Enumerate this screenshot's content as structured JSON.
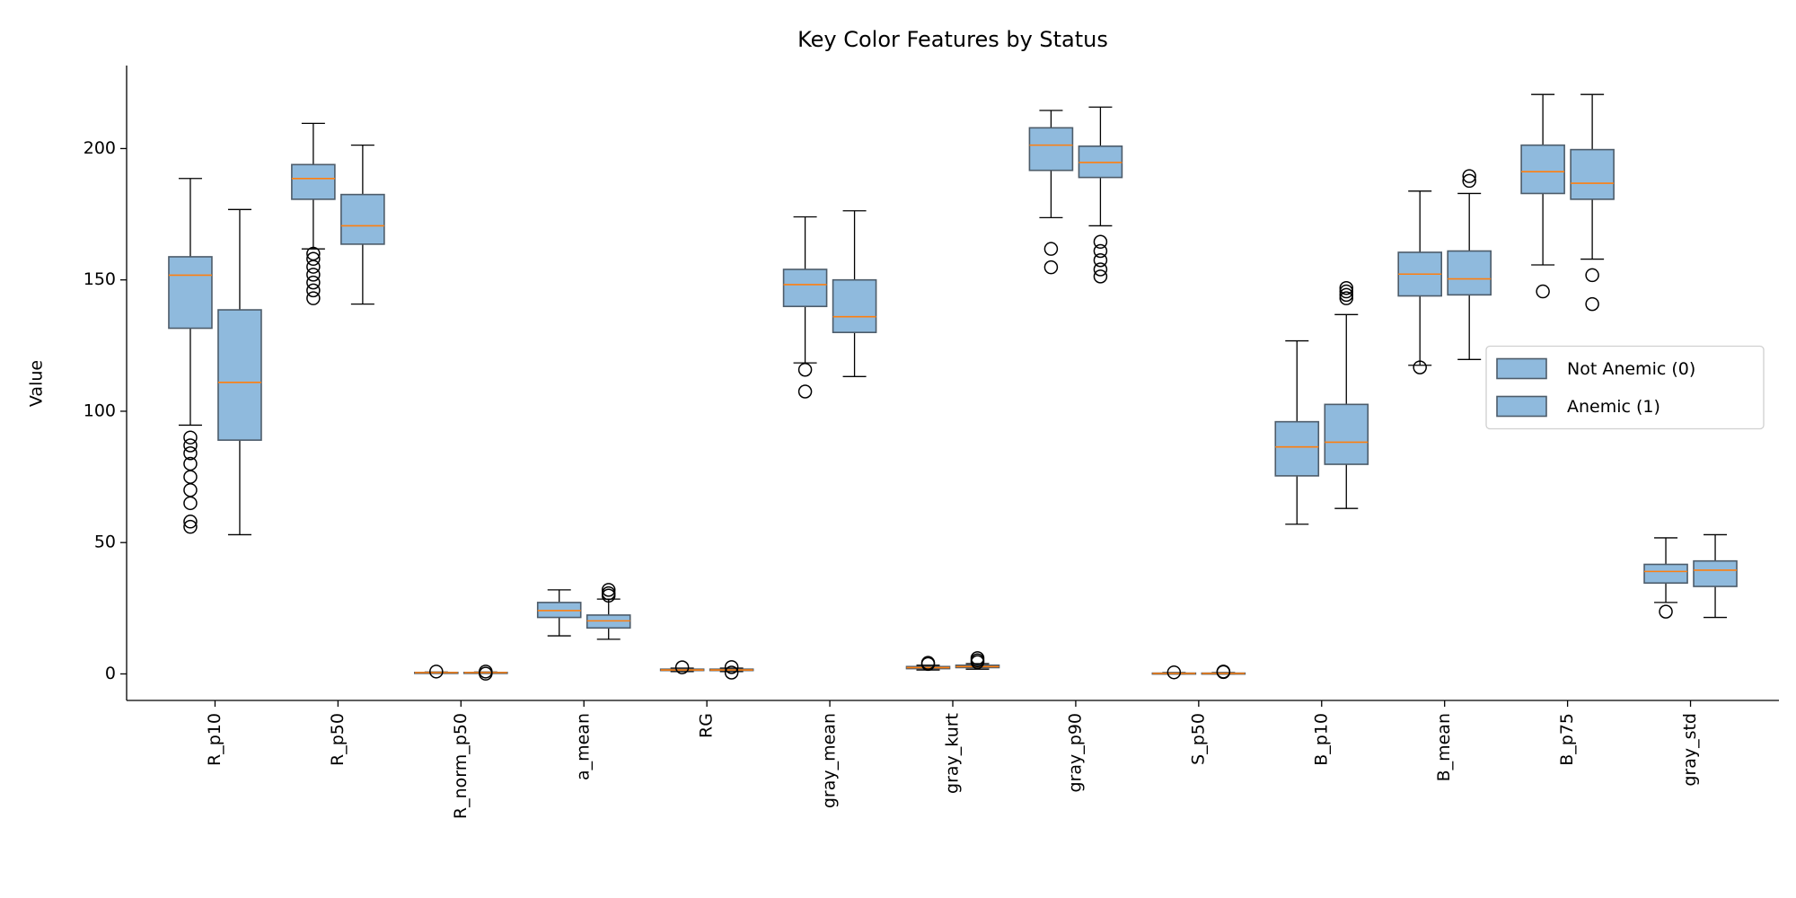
{
  "chart_data": {
    "type": "box",
    "title": "Key Color Features by Status",
    "y_label": "Value",
    "categories": [
      "R_p10",
      "R_p50",
      "R_norm_p50",
      "a_mean",
      "RG",
      "gray_mean",
      "gray_kurt",
      "gray_p90",
      "S_p50",
      "B_p10",
      "B_mean",
      "B_p75",
      "gray_std"
    ],
    "ylim": [
      -10.1,
      231.6
    ],
    "yticks": [
      0,
      50,
      100,
      150,
      200
    ],
    "legend": "center right",
    "median_color": "#ff7f0e",
    "edge_color": "#4d5c6a",
    "series": [
      {
        "name": "Not Anemic (0)",
        "color": "#8fbadd",
        "boxes": [
          {
            "whislo": 94.7,
            "q1": 131.6,
            "med": 151.8,
            "q3": 158.8,
            "whishi": 188.6,
            "fliers": [
              90,
              87,
              84,
              80,
              75,
              70,
              65,
              58,
              56
            ]
          },
          {
            "whislo": 161.8,
            "q1": 180.7,
            "med": 188.6,
            "q3": 193.9,
            "whishi": 209.6,
            "fliers": [
              160,
              158,
              155,
              152,
              149,
              146,
              143
            ]
          },
          {
            "whislo": 0.3,
            "q1": 0.45,
            "med": 0.5,
            "q3": 0.55,
            "whishi": 0.7,
            "fliers": [
              0.9
            ]
          },
          {
            "whislo": 14.5,
            "q1": 21.5,
            "med": 24.1,
            "q3": 27.2,
            "whishi": 32,
            "fliers": []
          },
          {
            "whislo": 0.9,
            "q1": 1.3,
            "med": 1.5,
            "q3": 1.8,
            "whishi": 2.2,
            "fliers": [
              2.5
            ]
          },
          {
            "whislo": 118.4,
            "q1": 139.9,
            "med": 148.2,
            "q3": 154,
            "whishi": 174,
            "fliers": [
              115.8,
              107.5
            ]
          },
          {
            "whislo": 1.5,
            "q1": 2,
            "med": 2.4,
            "q3": 2.8,
            "whishi": 3.3,
            "fliers": [
              3.8,
              4.2
            ]
          },
          {
            "whislo": 173.7,
            "q1": 191.7,
            "med": 201.3,
            "q3": 207.9,
            "whishi": 214.5,
            "fliers": [
              161.8,
              154.8
            ]
          },
          {
            "whislo": 0,
            "q1": 0.1,
            "med": 0.2,
            "q3": 0.3,
            "whishi": 0.5,
            "fliers": [
              0.6
            ]
          },
          {
            "whislo": 57,
            "q1": 75.4,
            "med": 86.4,
            "q3": 96,
            "whishi": 126.8,
            "fliers": []
          },
          {
            "whislo": 117.5,
            "q1": 143.9,
            "med": 152.2,
            "q3": 160.5,
            "whishi": 183.8,
            "fliers": [
              116.7
            ]
          },
          {
            "whislo": 155.7,
            "q1": 182.9,
            "med": 191.2,
            "q3": 201.3,
            "whishi": 220.6,
            "fliers": [
              145.6
            ]
          },
          {
            "whislo": 27.2,
            "q1": 34.6,
            "med": 39,
            "q3": 41.7,
            "whishi": 51.8,
            "fliers": [
              23.7
            ]
          }
        ]
      },
      {
        "name": "Anemic (1)",
        "color": "#8fbadd",
        "boxes": [
          {
            "whislo": 53,
            "q1": 89,
            "med": 111,
            "q3": 138.6,
            "whishi": 176.8,
            "fliers": []
          },
          {
            "whislo": 140.8,
            "q1": 163.6,
            "med": 170.6,
            "q3": 182.5,
            "whishi": 201.3,
            "fliers": []
          },
          {
            "whislo": 0.3,
            "q1": 0.45,
            "med": 0.5,
            "q3": 0.55,
            "whishi": 0.7,
            "fliers": [
              0.1,
              0.9
            ]
          },
          {
            "whislo": 13.2,
            "q1": 17.5,
            "med": 20.2,
            "q3": 22.4,
            "whishi": 28.5,
            "fliers": [
              32,
              30.7,
              29.8
            ]
          },
          {
            "whislo": 0.9,
            "q1": 1.3,
            "med": 1.5,
            "q3": 1.8,
            "whishi": 2.2,
            "fliers": [
              0.5,
              2.6
            ]
          },
          {
            "whislo": 113.2,
            "q1": 130,
            "med": 136,
            "q3": 150,
            "whishi": 176.3,
            "fliers": []
          },
          {
            "whislo": 1.8,
            "q1": 2.4,
            "med": 2.8,
            "q3": 3.3,
            "whishi": 3.9,
            "fliers": [
              4.5,
              5.2,
              6
            ]
          },
          {
            "whislo": 170.6,
            "q1": 189,
            "med": 194.7,
            "q3": 200.9,
            "whishi": 215.8,
            "fliers": [
              164.5,
              161,
              157.5,
              154,
              151.3
            ]
          },
          {
            "whislo": 0,
            "q1": 0.1,
            "med": 0.2,
            "q3": 0.3,
            "whishi": 0.5,
            "fliers": [
              0.7,
              0.9
            ]
          },
          {
            "whislo": 63,
            "q1": 79.8,
            "med": 88.2,
            "q3": 102.6,
            "whishi": 136.8,
            "fliers": [
              146.9,
              145.6,
              144.3,
              143
            ]
          },
          {
            "whislo": 119.7,
            "q1": 144.3,
            "med": 150.4,
            "q3": 161,
            "whishi": 182.9,
            "fliers": [
              189.5,
              187.7
            ]
          },
          {
            "whislo": 157.9,
            "q1": 180.7,
            "med": 186.8,
            "q3": 199.6,
            "whishi": 220.6,
            "fliers": [
              151.8,
              140.8
            ]
          },
          {
            "whislo": 21.5,
            "q1": 33.3,
            "med": 39.5,
            "q3": 43,
            "whishi": 53,
            "fliers": []
          }
        ]
      }
    ]
  }
}
